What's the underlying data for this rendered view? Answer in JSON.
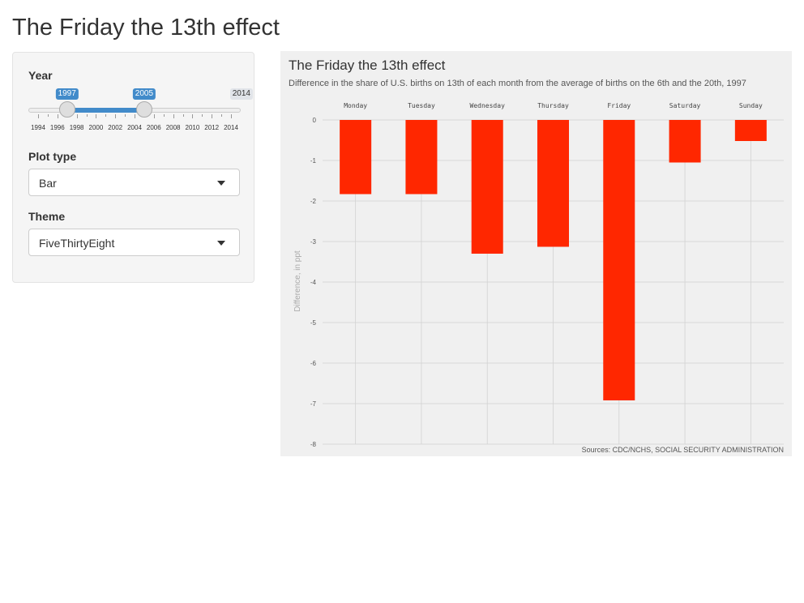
{
  "page": {
    "title": "The Friday the 13th effect"
  },
  "sidebar": {
    "year": {
      "label": "Year",
      "min": 1994,
      "max": 2014,
      "from": 1997,
      "to": 2005,
      "from_label": "1997",
      "to_label": "2005",
      "max_label": "2014",
      "tick_labels": [
        "1994",
        "1996",
        "1998",
        "2000",
        "2002",
        "2004",
        "2006",
        "2008",
        "2010",
        "2012",
        "2014"
      ]
    },
    "plot_type": {
      "label": "Plot type",
      "value": "Bar"
    },
    "theme": {
      "label": "Theme",
      "value": "FiveThirtyEight"
    }
  },
  "chart_data": {
    "type": "bar",
    "title": "The Friday the 13th effect",
    "subtitle": "Difference in the share of U.S. births on 13th of each month from the average of births on the 6th and the 20th, 1997",
    "ylabel": "Difference, in ppt",
    "caption": "Sources: CDC/NCHS, SOCIAL SECURITY ADMINISTRATION",
    "categories": [
      "Monday",
      "Tuesday",
      "Wednesday",
      "Thursday",
      "Friday",
      "Saturday",
      "Sunday"
    ],
    "values": [
      -1.83,
      -1.83,
      -3.3,
      -3.13,
      -6.92,
      -1.05,
      -0.52
    ],
    "ylim": [
      -8,
      0
    ],
    "y_ticks": [
      0,
      -1,
      -2,
      -3,
      -4,
      -5,
      -6,
      -7,
      -8
    ],
    "x_axis_position": "top",
    "bar_color": "#ff2700",
    "background": "#f0f0f0",
    "grid": true
  }
}
